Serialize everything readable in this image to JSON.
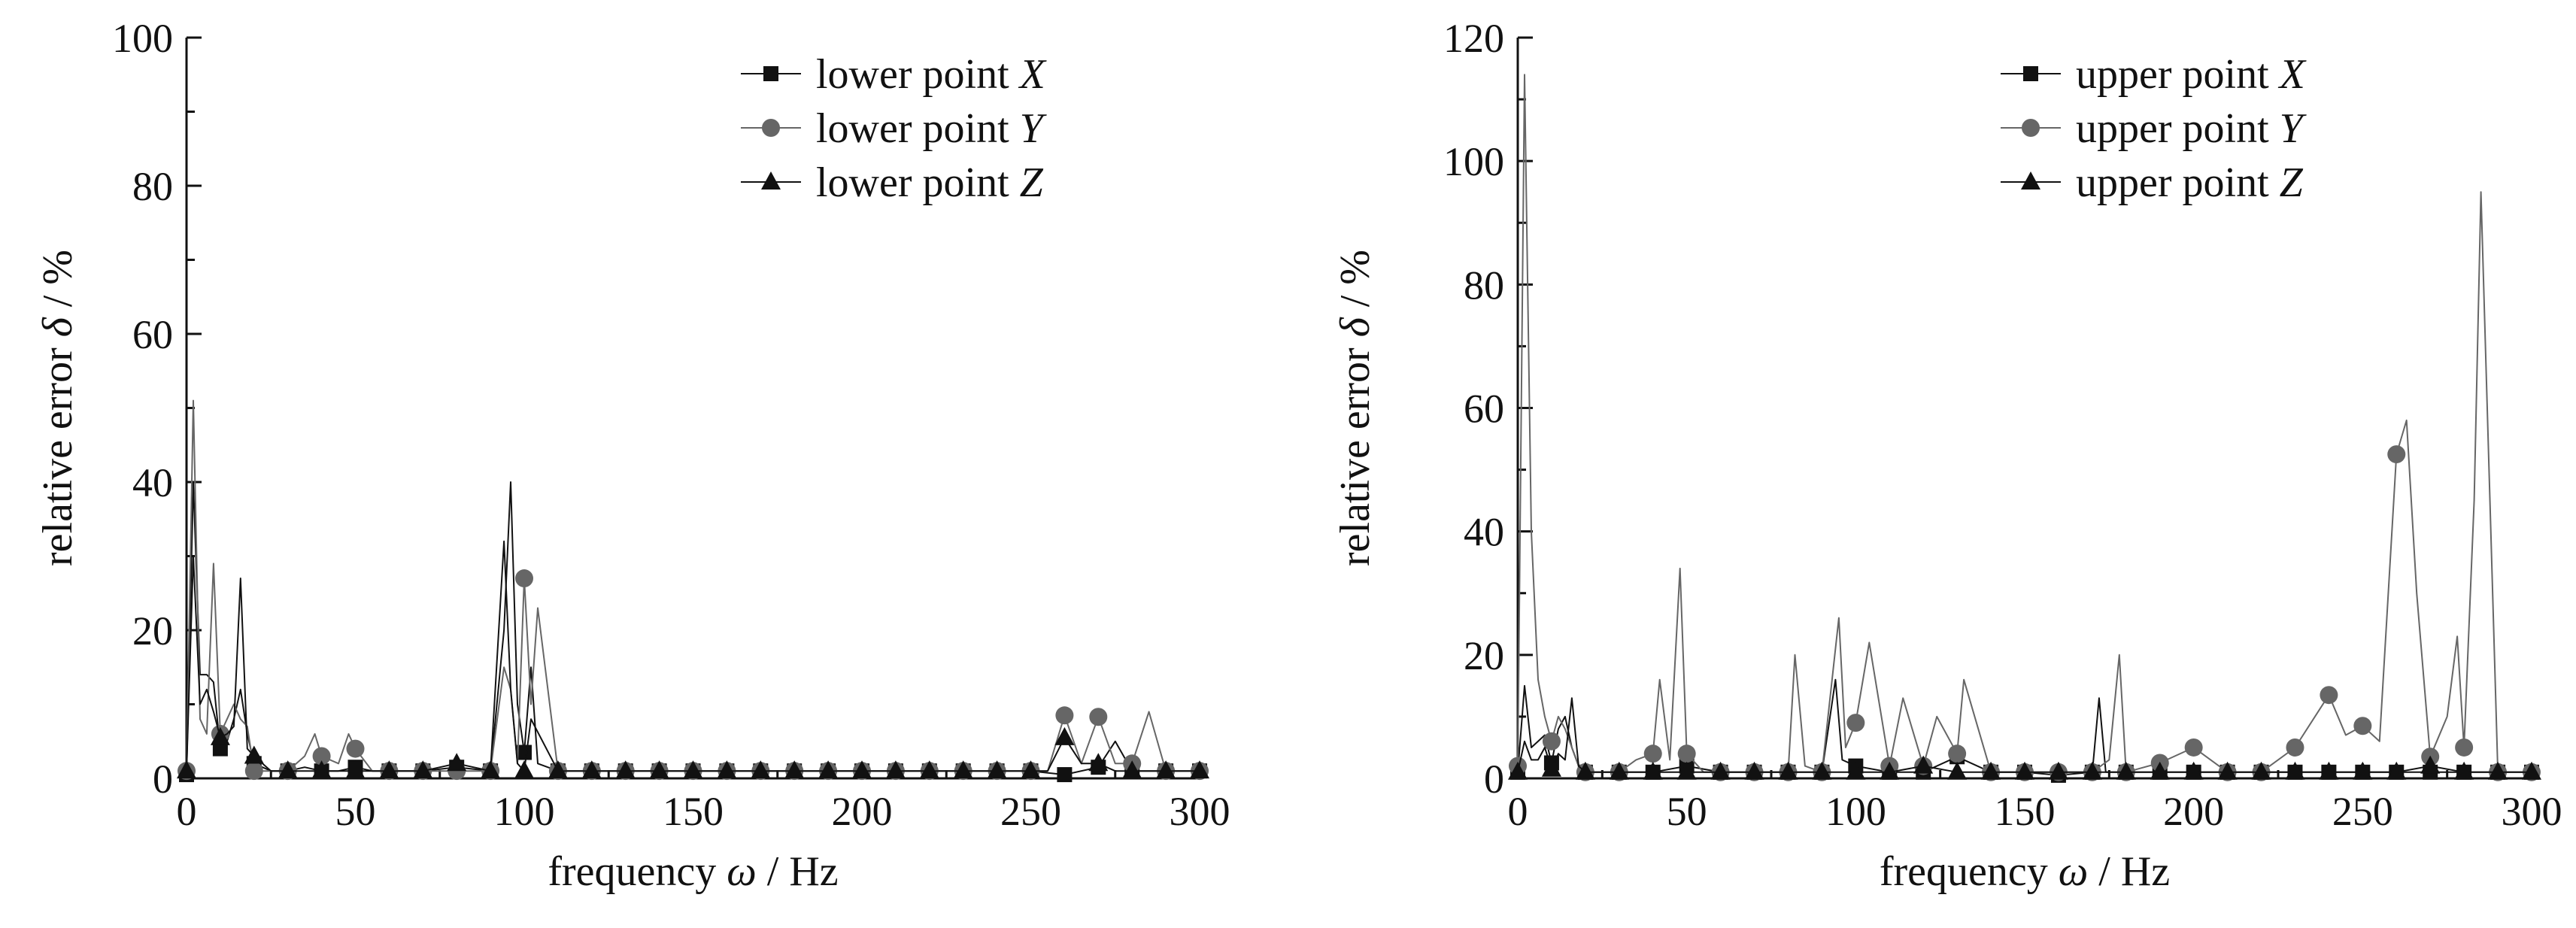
{
  "chart_data": [
    {
      "type": "line",
      "xlabel": {
        "prefix": "frequency ",
        "symbol": "ω",
        "suffix": " / Hz"
      },
      "ylabel": {
        "prefix": "relative error ",
        "symbol": "δ",
        "suffix": " / %"
      },
      "xlim": [
        0,
        300
      ],
      "ylim": [
        0,
        100
      ],
      "xticks": [
        "0",
        "50",
        "100",
        "150",
        "200",
        "250",
        "300"
      ],
      "yticks": [
        "0",
        "20",
        "40",
        "60",
        "80",
        "100"
      ],
      "grid": false,
      "legend_position": "top-right",
      "series": [
        {
          "name": {
            "text": "lower point ",
            "symbol": "X"
          },
          "marker": "square",
          "color": "#111111",
          "x": [
            0,
            2,
            4,
            6,
            8,
            10,
            12,
            14,
            16,
            18,
            20,
            25,
            30,
            35,
            40,
            45,
            50,
            55,
            60,
            70,
            80,
            90,
            94,
            96,
            98,
            100,
            102,
            104,
            110,
            120,
            130,
            140,
            150,
            160,
            170,
            180,
            190,
            200,
            210,
            220,
            230,
            240,
            250,
            260,
            270,
            275,
            280,
            290,
            300
          ],
          "y": [
            0.5,
            40,
            14,
            14,
            13,
            4,
            5,
            8,
            12,
            6,
            2,
            1,
            1,
            1.5,
            1,
            1,
            1.5,
            1,
            1,
            1,
            1.5,
            1,
            20,
            40,
            10,
            3.5,
            15,
            2,
            1,
            1,
            1,
            1,
            1,
            1,
            1,
            1,
            1,
            1,
            1,
            1,
            1,
            1,
            1,
            0.5,
            1.5,
            5,
            1,
            1,
            1
          ]
        },
        {
          "name": {
            "text": "lower point ",
            "symbol": "Y"
          },
          "marker": "circle",
          "color": "#666666",
          "x": [
            0,
            2,
            4,
            6,
            8,
            10,
            12,
            14,
            16,
            18,
            20,
            25,
            30,
            35,
            38,
            40,
            45,
            48,
            50,
            55,
            60,
            70,
            80,
            90,
            94,
            96,
            98,
            100,
            102,
            104,
            110,
            120,
            130,
            140,
            150,
            160,
            170,
            180,
            190,
            200,
            210,
            220,
            230,
            240,
            250,
            255,
            260,
            265,
            270,
            275,
            280,
            285,
            290,
            300
          ],
          "y": [
            1,
            51,
            8,
            6,
            29,
            6,
            8,
            10,
            8,
            7,
            1,
            1,
            1,
            3,
            6,
            3,
            2,
            6,
            4,
            1,
            1,
            1,
            1,
            1,
            15,
            12,
            2,
            27,
            10,
            23,
            1,
            1,
            1,
            1,
            1,
            1,
            1,
            1,
            1,
            1,
            1,
            1,
            1,
            1,
            1,
            1,
            8.5,
            2,
            8.3,
            2,
            2,
            9,
            1,
            1
          ]
        },
        {
          "name": {
            "text": "lower point ",
            "symbol": "Z"
          },
          "marker": "triangle",
          "color": "#111111",
          "x": [
            0,
            2,
            4,
            6,
            8,
            10,
            12,
            14,
            16,
            18,
            20,
            25,
            30,
            40,
            50,
            60,
            70,
            80,
            90,
            94,
            96,
            98,
            100,
            102,
            110,
            120,
            130,
            140,
            150,
            160,
            170,
            180,
            190,
            200,
            210,
            220,
            230,
            240,
            250,
            255,
            260,
            265,
            270,
            275,
            280,
            290,
            300
          ],
          "y": [
            1,
            30,
            10,
            12,
            9,
            5.5,
            6,
            7,
            27,
            4,
            3,
            1,
            1,
            1,
            1,
            1,
            1,
            2,
            1,
            32,
            12,
            2,
            1,
            8,
            1,
            1,
            1,
            1,
            1,
            1,
            1,
            1,
            1,
            1,
            1,
            1,
            1,
            1,
            1,
            1,
            5.5,
            2,
            2,
            1,
            1,
            1,
            1
          ]
        }
      ]
    },
    {
      "type": "line",
      "xlabel": {
        "prefix": "frequency ",
        "symbol": "ω",
        "suffix": " / Hz"
      },
      "ylabel": {
        "prefix": "relative error ",
        "symbol": "δ",
        "suffix": " / %"
      },
      "xlim": [
        0,
        300
      ],
      "ylim": [
        0,
        120
      ],
      "xticks": [
        "0",
        "50",
        "100",
        "150",
        "200",
        "250",
        "300"
      ],
      "yticks": [
        "0",
        "20",
        "40",
        "60",
        "80",
        "100",
        "120"
      ],
      "grid": false,
      "legend_position": "top-right",
      "series": [
        {
          "name": {
            "text": "upper point ",
            "symbol": "X"
          },
          "marker": "square",
          "color": "#111111",
          "x": [
            0,
            2,
            4,
            6,
            8,
            10,
            12,
            14,
            16,
            18,
            20,
            30,
            40,
            50,
            60,
            70,
            80,
            90,
            94,
            96,
            100,
            110,
            120,
            130,
            140,
            150,
            160,
            170,
            172,
            174,
            180,
            190,
            200,
            210,
            220,
            230,
            240,
            250,
            260,
            270,
            280,
            290,
            300
          ],
          "y": [
            1,
            15,
            5,
            6,
            7,
            2.5,
            8,
            10,
            5,
            2,
            1,
            1,
            1,
            2,
            1,
            1,
            1,
            1,
            16,
            3,
            2,
            1,
            1,
            3.5,
            1,
            1,
            0.5,
            1,
            13,
            1,
            1,
            1,
            1,
            1,
            1,
            1,
            1,
            1,
            1,
            1,
            1,
            1,
            1
          ]
        },
        {
          "name": {
            "text": "upper point ",
            "symbol": "Y"
          },
          "marker": "circle",
          "color": "#666666",
          "x": [
            0,
            2,
            4,
            6,
            8,
            10,
            12,
            14,
            16,
            18,
            20,
            30,
            35,
            40,
            42,
            45,
            48,
            50,
            55,
            60,
            70,
            80,
            82,
            85,
            90,
            95,
            97,
            100,
            104,
            110,
            114,
            120,
            124,
            130,
            132,
            140,
            150,
            160,
            170,
            175,
            178,
            180,
            190,
            200,
            210,
            220,
            230,
            240,
            245,
            250,
            255,
            260,
            263,
            266,
            270,
            275,
            278,
            280,
            283,
            285,
            290,
            300
          ],
          "y": [
            2,
            114,
            40,
            16,
            10,
            6,
            10,
            8,
            5,
            2,
            1,
            1,
            3,
            4,
            16,
            3,
            34,
            4,
            1,
            1,
            1,
            1,
            20,
            2,
            1,
            26,
            5,
            9,
            22,
            2,
            13,
            2,
            10,
            4,
            16,
            1,
            1,
            1,
            1,
            3,
            20,
            1,
            2.5,
            5,
            1,
            1,
            5,
            13.5,
            7,
            8.5,
            6,
            52.5,
            58,
            30,
            3.5,
            10,
            23,
            5,
            45,
            95,
            1,
            1
          ]
        },
        {
          "name": {
            "text": "upper point ",
            "symbol": "Z"
          },
          "marker": "triangle",
          "color": "#111111",
          "x": [
            0,
            2,
            4,
            6,
            8,
            10,
            12,
            14,
            16,
            18,
            20,
            30,
            40,
            50,
            60,
            70,
            80,
            90,
            100,
            110,
            120,
            130,
            140,
            150,
            160,
            170,
            180,
            190,
            200,
            210,
            220,
            230,
            240,
            250,
            260,
            270,
            280,
            290,
            300
          ],
          "y": [
            1,
            6,
            3,
            3,
            5,
            1.5,
            4,
            3,
            13,
            2,
            1,
            1,
            1,
            1,
            1,
            1,
            1,
            1,
            1,
            1,
            2,
            1,
            1,
            1,
            1,
            1,
            1,
            1,
            1,
            1,
            1,
            1,
            1,
            1,
            1,
            2,
            1,
            1,
            1
          ]
        }
      ]
    }
  ]
}
